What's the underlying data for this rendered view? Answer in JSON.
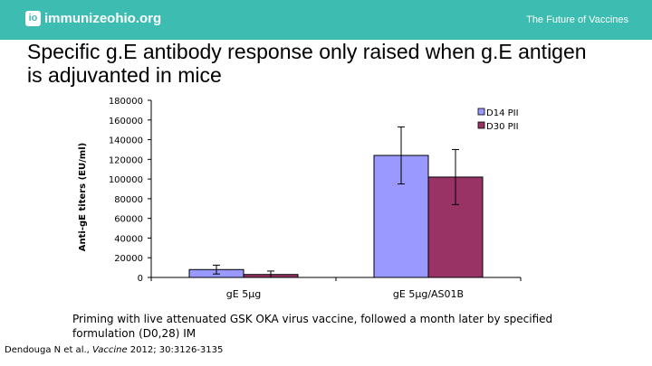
{
  "header": {
    "logo_badge": "io",
    "logo_text": "immunizeohio.org",
    "tagline": "The Future of Vaccines"
  },
  "slide": {
    "title": "Specific g.E antibody response only raised when g.E antigen is adjuvanted in mice",
    "caption": "Priming with live attenuated GSK OKA virus vaccine, followed a month later by specified formulation (D0,28) IM",
    "citation_authors": "Dendouga N et al., ",
    "citation_journal": "Vaccine",
    "citation_rest": " 2012; 30:3126-3135"
  },
  "colors": {
    "header": "#3dbdb1",
    "series1": "#9999ff",
    "series2": "#993366"
  },
  "chart_data": {
    "type": "bar",
    "ylabel": "Anti-gE titers (EU/ml)",
    "xlabel": "",
    "ylim": [
      0,
      180000
    ],
    "yticks": [
      0,
      20000,
      40000,
      60000,
      80000,
      100000,
      120000,
      140000,
      160000,
      180000
    ],
    "categories": [
      "gE 5µg",
      "gE 5µg/AS01B"
    ],
    "series": [
      {
        "name": "D14 PII",
        "color": "#9999ff",
        "values": [
          8000,
          124000
        ],
        "error": [
          4500,
          29000
        ]
      },
      {
        "name": "D30 PII",
        "color": "#993366",
        "values": [
          3000,
          102000
        ],
        "error": [
          3500,
          28000
        ]
      }
    ],
    "grid": false,
    "legend": "top-right"
  }
}
